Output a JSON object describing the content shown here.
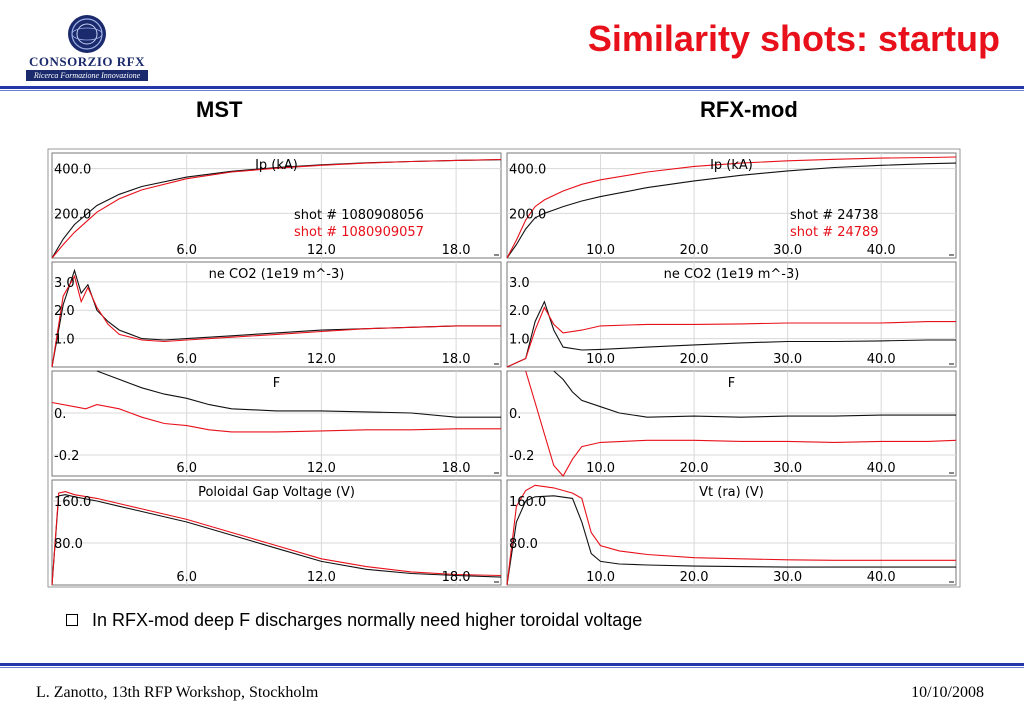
{
  "slide_title": "Similarity shots: startup",
  "logo": {
    "name": "CONSORZIO RFX",
    "tagline": "Ricerca Formazione Innovazione"
  },
  "columns": {
    "left": "MST",
    "right": "RFX-mod"
  },
  "bullet": "In RFX-mod deep F discharges normally need higher toroidal voltage",
  "footer": {
    "left": "L. Zanotto, 13th RFP Workshop, Stockholm",
    "right": "10/10/2008"
  },
  "colors": {
    "accent_red": "#e8101a",
    "rule_blue": "#2436a8",
    "series_black": "#111111",
    "series_red": "#e8101a"
  },
  "chart_data": [
    {
      "type": "line",
      "device": "MST",
      "title": "Ip (kA)",
      "xlim": [
        0,
        20
      ],
      "ylim": [
        0,
        470
      ],
      "yticks": [
        {
          "v": 400,
          "t": "400.0"
        },
        {
          "v": 200,
          "t": "200.0"
        }
      ],
      "xticks": [
        {
          "v": 6,
          "t": "6.0"
        },
        {
          "v": 12,
          "t": "12.0"
        },
        {
          "v": 18,
          "t": "18.0"
        }
      ],
      "legend": [
        "shot # 1080908056",
        "shot # 1080909057"
      ],
      "series": [
        {
          "name": "shot # 1080908056",
          "color": "black",
          "x": [
            0,
            0.5,
            1,
            2,
            3,
            4,
            6,
            8,
            10,
            12,
            14,
            16,
            18,
            20
          ],
          "y": [
            0,
            85,
            150,
            235,
            285,
            320,
            362,
            388,
            405,
            417,
            426,
            432,
            437,
            440
          ]
        },
        {
          "name": "shot # 1080909057",
          "color": "red",
          "x": [
            0,
            0.5,
            1,
            2,
            3,
            4,
            6,
            8,
            10,
            12,
            14,
            16,
            18,
            20
          ],
          "y": [
            0,
            60,
            115,
            205,
            265,
            305,
            355,
            385,
            402,
            415,
            425,
            432,
            437,
            441
          ]
        }
      ]
    },
    {
      "type": "line",
      "device": "RFX-mod",
      "title": "Ip (kA)",
      "xlim": [
        0,
        48
      ],
      "ylim": [
        0,
        470
      ],
      "yticks": [
        {
          "v": 400,
          "t": "400.0"
        },
        {
          "v": 200,
          "t": "200.0"
        }
      ],
      "xticks": [
        {
          "v": 10,
          "t": "10.0"
        },
        {
          "v": 20,
          "t": "20.0"
        },
        {
          "v": 30,
          "t": "30.0"
        },
        {
          "v": 40,
          "t": "40.0"
        }
      ],
      "legend": [
        "shot # 24738",
        "shot # 24789"
      ],
      "series": [
        {
          "name": "shot # 24738",
          "color": "black",
          "x": [
            0,
            1,
            2,
            3,
            4,
            5,
            6,
            8,
            10,
            15,
            20,
            25,
            30,
            35,
            40,
            45,
            48
          ],
          "y": [
            0,
            60,
            130,
            180,
            200,
            215,
            230,
            255,
            275,
            315,
            345,
            370,
            390,
            405,
            415,
            422,
            425
          ]
        },
        {
          "name": "shot # 24789",
          "color": "red",
          "x": [
            0,
            1,
            2,
            3,
            4,
            5,
            6,
            8,
            10,
            15,
            20,
            25,
            30,
            35,
            40,
            45,
            48
          ],
          "y": [
            0,
            80,
            170,
            230,
            260,
            280,
            300,
            330,
            350,
            385,
            410,
            425,
            435,
            442,
            447,
            450,
            452
          ]
        }
      ]
    },
    {
      "type": "line",
      "device": "MST",
      "title": "ne CO2 (1e19 m^-3)",
      "xlim": [
        0,
        20
      ],
      "ylim": [
        0,
        3.7
      ],
      "yticks": [
        {
          "v": 3,
          "t": "3.0"
        },
        {
          "v": 2,
          "t": "2.0"
        },
        {
          "v": 1,
          "t": "1.0"
        }
      ],
      "xticks": [
        {
          "v": 6,
          "t": "6.0"
        },
        {
          "v": 12,
          "t": "12.0"
        },
        {
          "v": 18,
          "t": "18.0"
        }
      ],
      "series": [
        {
          "name": "black",
          "color": "black",
          "x": [
            0,
            0.5,
            1,
            1.3,
            1.6,
            2,
            2.5,
            3,
            4,
            5,
            6,
            8,
            10,
            12,
            14,
            16,
            18,
            20
          ],
          "y": [
            0,
            2.2,
            3.4,
            2.6,
            2.9,
            2,
            1.6,
            1.3,
            1.0,
            0.95,
            1.0,
            1.1,
            1.2,
            1.3,
            1.35,
            1.4,
            1.45,
            1.45
          ]
        },
        {
          "name": "red",
          "color": "red",
          "x": [
            0,
            0.5,
            1,
            1.3,
            1.6,
            2,
            2.5,
            3,
            4,
            5,
            6,
            8,
            10,
            12,
            14,
            16,
            18,
            20
          ],
          "y": [
            0,
            2.5,
            3.2,
            2.3,
            2.8,
            2.1,
            1.5,
            1.15,
            0.95,
            0.9,
            0.95,
            1.05,
            1.15,
            1.25,
            1.35,
            1.4,
            1.45,
            1.45
          ]
        }
      ]
    },
    {
      "type": "line",
      "device": "RFX-mod",
      "title": "ne CO2 (1e19 m^-3)",
      "xlim": [
        0,
        48
      ],
      "ylim": [
        0,
        3.7
      ],
      "yticks": [
        {
          "v": 3,
          "t": "3.0"
        },
        {
          "v": 2,
          "t": "2.0"
        },
        {
          "v": 1,
          "t": "1.0"
        }
      ],
      "xticks": [
        {
          "v": 10,
          "t": "10.0"
        },
        {
          "v": 20,
          "t": "20.0"
        },
        {
          "v": 30,
          "t": "30.0"
        },
        {
          "v": 40,
          "t": "40.0"
        }
      ],
      "series": [
        {
          "name": "black",
          "color": "black",
          "x": [
            0,
            2,
            3,
            4,
            5,
            6,
            8,
            10,
            15,
            20,
            25,
            30,
            35,
            40,
            45,
            48
          ],
          "y": [
            0,
            0.3,
            1.6,
            2.3,
            1.3,
            0.7,
            0.6,
            0.62,
            0.7,
            0.78,
            0.85,
            0.9,
            0.9,
            0.92,
            0.95,
            0.95
          ]
        },
        {
          "name": "red",
          "color": "red",
          "x": [
            0,
            2,
            3,
            4,
            5,
            6,
            8,
            10,
            15,
            20,
            25,
            30,
            35,
            40,
            45,
            48
          ],
          "y": [
            0,
            0.3,
            1.3,
            2.1,
            1.5,
            1.2,
            1.3,
            1.45,
            1.5,
            1.5,
            1.52,
            1.55,
            1.55,
            1.55,
            1.6,
            1.6
          ]
        }
      ]
    },
    {
      "type": "line",
      "device": "MST",
      "title": "F",
      "xlim": [
        0,
        20
      ],
      "ylim": [
        -0.3,
        0.2
      ],
      "yticks": [
        {
          "v": 0,
          "t": "0."
        },
        {
          "v": -0.2,
          "t": "-0.2"
        }
      ],
      "xticks": [
        {
          "v": 6,
          "t": "6.0"
        },
        {
          "v": 12,
          "t": "12.0"
        },
        {
          "v": 18,
          "t": "18.0"
        }
      ],
      "series": [
        {
          "name": "black",
          "color": "black",
          "x": [
            2,
            3,
            4,
            5,
            6,
            7,
            8,
            10,
            12,
            14,
            16,
            18,
            20
          ],
          "y": [
            0.2,
            0.16,
            0.12,
            0.09,
            0.07,
            0.04,
            0.02,
            0.01,
            0.01,
            0.005,
            0.0,
            -0.02,
            -0.02
          ]
        },
        {
          "name": "red",
          "color": "red",
          "x": [
            0,
            1,
            1.5,
            2,
            3,
            4,
            5,
            6,
            7,
            8,
            10,
            12,
            14,
            16,
            18,
            20
          ],
          "y": [
            0.05,
            0.03,
            0.02,
            0.04,
            0.02,
            -0.02,
            -0.05,
            -0.06,
            -0.08,
            -0.09,
            -0.09,
            -0.085,
            -0.08,
            -0.08,
            -0.075,
            -0.075
          ]
        }
      ]
    },
    {
      "type": "line",
      "device": "RFX-mod",
      "title": "F",
      "xlim": [
        0,
        48
      ],
      "ylim": [
        -0.3,
        0.2
      ],
      "yticks": [
        {
          "v": 0,
          "t": "0."
        },
        {
          "v": -0.2,
          "t": "-0.2"
        }
      ],
      "xticks": [
        {
          "v": 10,
          "t": "10.0"
        },
        {
          "v": 20,
          "t": "20.0"
        },
        {
          "v": 30,
          "t": "30.0"
        },
        {
          "v": 40,
          "t": "40.0"
        }
      ],
      "series": [
        {
          "name": "black",
          "color": "black",
          "x": [
            5,
            6,
            7,
            8,
            10,
            12,
            15,
            20,
            25,
            30,
            35,
            40,
            45,
            48
          ],
          "y": [
            0.2,
            0.16,
            0.1,
            0.06,
            0.03,
            0.0,
            -0.02,
            -0.015,
            -0.02,
            -0.015,
            -0.015,
            -0.01,
            -0.01,
            -0.01
          ]
        },
        {
          "name": "red",
          "color": "red",
          "x": [
            2,
            3,
            4,
            5,
            6,
            7,
            8,
            10,
            15,
            20,
            25,
            30,
            35,
            40,
            45,
            48
          ],
          "y": [
            0.2,
            0.05,
            -0.1,
            -0.25,
            -0.3,
            -0.22,
            -0.16,
            -0.14,
            -0.13,
            -0.13,
            -0.135,
            -0.135,
            -0.14,
            -0.135,
            -0.135,
            -0.13
          ]
        }
      ]
    },
    {
      "type": "line",
      "device": "MST",
      "title": "Poloidal Gap Voltage (V)",
      "xlim": [
        0,
        20
      ],
      "ylim": [
        0,
        200
      ],
      "yticks": [
        {
          "v": 160,
          "t": "160.0"
        },
        {
          "v": 80,
          "t": "80.0"
        }
      ],
      "xticks": [
        {
          "v": 6,
          "t": "6.0"
        },
        {
          "v": 12,
          "t": "12.0"
        },
        {
          "v": 18,
          "t": "18.0"
        }
      ],
      "series": [
        {
          "name": "black",
          "color": "black",
          "x": [
            0,
            0.3,
            0.6,
            1,
            2,
            3,
            4,
            6,
            8,
            10,
            12,
            14,
            16,
            18,
            20
          ],
          "y": [
            0,
            170,
            172,
            168,
            160,
            150,
            140,
            120,
            95,
            70,
            45,
            30,
            22,
            18,
            15
          ]
        },
        {
          "name": "red",
          "color": "red",
          "x": [
            0,
            0.3,
            0.6,
            1,
            2,
            3,
            4,
            6,
            8,
            10,
            12,
            14,
            16,
            18,
            20
          ],
          "y": [
            0,
            175,
            178,
            172,
            165,
            155,
            145,
            125,
            100,
            75,
            50,
            35,
            25,
            20,
            18
          ]
        }
      ]
    },
    {
      "type": "line",
      "device": "RFX-mod",
      "title": "Vt (ra) (V)",
      "xlim": [
        0,
        48
      ],
      "ylim": [
        0,
        200
      ],
      "yticks": [
        {
          "v": 160,
          "t": "160.0"
        },
        {
          "v": 80,
          "t": "80.0"
        }
      ],
      "xticks": [
        {
          "v": 10,
          "t": "10.0"
        },
        {
          "v": 20,
          "t": "20.0"
        },
        {
          "v": 30,
          "t": "30.0"
        },
        {
          "v": 40,
          "t": "40.0"
        }
      ],
      "series": [
        {
          "name": "black",
          "color": "black",
          "x": [
            0,
            1,
            2,
            3,
            5,
            7,
            8,
            9,
            10,
            12,
            15,
            20,
            25,
            30,
            35,
            40,
            45,
            48
          ],
          "y": [
            0,
            120,
            160,
            168,
            170,
            165,
            120,
            60,
            45,
            40,
            38,
            36,
            35,
            34,
            34,
            34,
            34,
            34
          ]
        },
        {
          "name": "red",
          "color": "red",
          "x": [
            0,
            1,
            2,
            3,
            5,
            7,
            8,
            9,
            10,
            12,
            15,
            20,
            25,
            30,
            35,
            40,
            45,
            48
          ],
          "y": [
            0,
            150,
            180,
            190,
            185,
            175,
            165,
            100,
            75,
            65,
            58,
            52,
            50,
            48,
            47,
            47,
            47,
            47
          ]
        }
      ]
    }
  ]
}
